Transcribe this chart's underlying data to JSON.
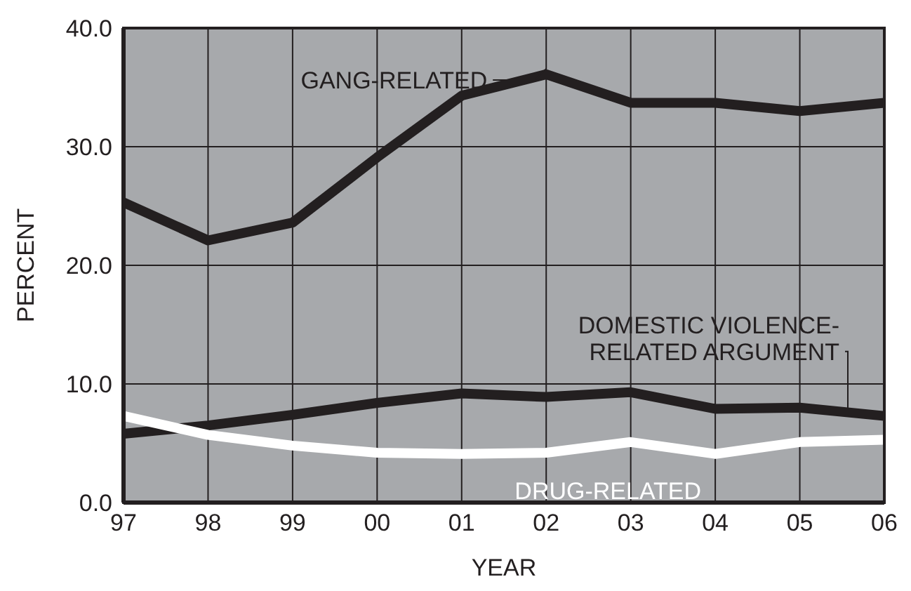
{
  "chart_data": {
    "type": "line",
    "xlabel": "YEAR",
    "ylabel": "PERCENT",
    "categories": [
      "97",
      "98",
      "99",
      "00",
      "01",
      "02",
      "03",
      "04",
      "05",
      "06"
    ],
    "series": [
      {
        "name": "GANG-RELATED",
        "color": "#231f20",
        "values": [
          25.3,
          22.1,
          23.6,
          29.1,
          34.3,
          36.1,
          33.7,
          33.7,
          33.0,
          33.7
        ]
      },
      {
        "name": "DOMESTIC VIOLENCE-RELATED ARGUMENT",
        "color": "#231f20",
        "values": [
          5.8,
          6.5,
          7.4,
          8.4,
          9.2,
          8.9,
          9.3,
          7.9,
          8.0,
          7.3
        ]
      },
      {
        "name": "DRUG-RELATED",
        "color": "#ffffff",
        "values": [
          7.3,
          5.7,
          4.8,
          4.2,
          4.1,
          4.2,
          5.1,
          4.1,
          5.1,
          5.3
        ]
      }
    ],
    "ylim": [
      0,
      40
    ],
    "yticks": [
      {
        "value": 0,
        "label": "0.0"
      },
      {
        "value": 10,
        "label": "10.0"
      },
      {
        "value": 20,
        "label": "20.0"
      },
      {
        "value": 30,
        "label": "30.0"
      },
      {
        "value": 40,
        "label": "40.0"
      }
    ],
    "grid": true,
    "marker": "none",
    "line_style": "solid"
  }
}
